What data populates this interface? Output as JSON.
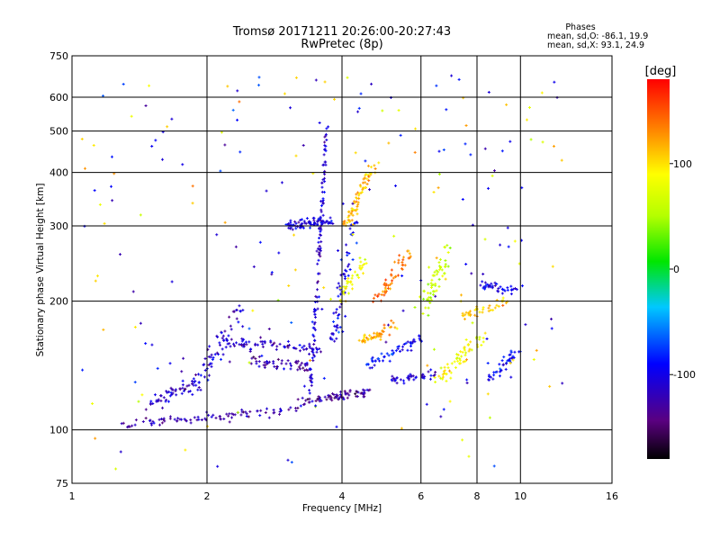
{
  "chart_data": {
    "type": "scatter",
    "title": "Tromsø 20171211 20:26:00-20:27:43",
    "subtitle": "RwPretec (8p)",
    "xlabel": "Frequency [MHz]",
    "ylabel": "Stationary phase Virtual Height [km]",
    "x_scale": "log",
    "y_scale": "log",
    "xlim": [
      1,
      16
    ],
    "ylim": [
      75,
      750
    ],
    "x_ticks": [
      1,
      2,
      4,
      6,
      8,
      10,
      16
    ],
    "x_tick_labels": [
      "1",
      "2",
      "4",
      "6",
      "8",
      "10",
      "16"
    ],
    "y_ticks": [
      75,
      100,
      200,
      300,
      400,
      500,
      600,
      750
    ],
    "y_tick_labels": [
      "75",
      "100",
      "200",
      "300",
      "400",
      "500",
      "600",
      "750"
    ],
    "grid": true,
    "stats": {
      "heading": "Phases",
      "line_o": "mean, sd,O: -86.1, 19.9",
      "line_x": "mean, sd,X:  93.1, 24.9"
    },
    "colorbar": {
      "label": "[deg]",
      "min": -180,
      "max": 180,
      "ticks": [
        100,
        0,
        -100
      ],
      "tick_labels": [
        "100",
        "0",
        "-100"
      ],
      "colormap": "rainbow"
    },
    "traces": [
      {
        "x0": 1.3,
        "y0": 103,
        "x1": 3.2,
        "y1": 112,
        "phase": -120,
        "n": 90,
        "spread": 0.05
      },
      {
        "x0": 1.5,
        "y0": 115,
        "x1": 1.9,
        "y1": 130,
        "phase": -115,
        "n": 50,
        "spread": 0.08
      },
      {
        "x0": 1.9,
        "y0": 125,
        "x1": 2.4,
        "y1": 200,
        "phase": -110,
        "n": 60,
        "spread": 0.1
      },
      {
        "x0": 2.2,
        "y0": 160,
        "x1": 3.5,
        "y1": 155,
        "phase": -115,
        "n": 70,
        "spread": 0.08
      },
      {
        "x0": 2.5,
        "y0": 145,
        "x1": 3.4,
        "y1": 140,
        "phase": -125,
        "n": 50,
        "spread": 0.07
      },
      {
        "x0": 3.2,
        "y0": 116,
        "x1": 4.6,
        "y1": 123,
        "phase": -130,
        "n": 70,
        "spread": 0.05
      },
      {
        "x0": 3.4,
        "y0": 120,
        "x1": 3.7,
        "y1": 520,
        "phase": -110,
        "n": 120,
        "spread": 0.02
      },
      {
        "x0": 3.0,
        "y0": 300,
        "x1": 3.8,
        "y1": 310,
        "phase": -105,
        "n": 80,
        "spread": 0.06
      },
      {
        "x0": 3.8,
        "y0": 160,
        "x1": 4.3,
        "y1": 310,
        "phase": -100,
        "n": 60,
        "spread": 0.07
      },
      {
        "x0": 4.1,
        "y0": 300,
        "x1": 4.7,
        "y1": 420,
        "phase": 110,
        "n": 70,
        "spread": 0.05
      },
      {
        "x0": 3.9,
        "y0": 200,
        "x1": 4.5,
        "y1": 250,
        "phase": 80,
        "n": 40,
        "spread": 0.08
      },
      {
        "x0": 4.4,
        "y0": 160,
        "x1": 5.2,
        "y1": 175,
        "phase": 120,
        "n": 50,
        "spread": 0.06
      },
      {
        "x0": 4.8,
        "y0": 200,
        "x1": 5.6,
        "y1": 260,
        "phase": 140,
        "n": 50,
        "spread": 0.07
      },
      {
        "x0": 4.5,
        "y0": 140,
        "x1": 6.0,
        "y1": 165,
        "phase": -90,
        "n": 50,
        "spread": 0.06
      },
      {
        "x0": 5.0,
        "y0": 130,
        "x1": 6.5,
        "y1": 135,
        "phase": -110,
        "n": 40,
        "spread": 0.05
      },
      {
        "x0": 6.0,
        "y0": 190,
        "x1": 7.0,
        "y1": 270,
        "phase": 60,
        "n": 60,
        "spread": 0.09
      },
      {
        "x0": 6.5,
        "y0": 130,
        "x1": 8.2,
        "y1": 165,
        "phase": 90,
        "n": 60,
        "spread": 0.08
      },
      {
        "x0": 7.5,
        "y0": 185,
        "x1": 9.2,
        "y1": 200,
        "phase": 110,
        "n": 40,
        "spread": 0.06
      },
      {
        "x0": 8.0,
        "y0": 220,
        "x1": 9.8,
        "y1": 210,
        "phase": -100,
        "n": 40,
        "spread": 0.05
      },
      {
        "x0": 8.5,
        "y0": 130,
        "x1": 9.9,
        "y1": 155,
        "phase": -95,
        "n": 40,
        "spread": 0.06
      }
    ],
    "scatter_noise": {
      "n": 220,
      "x_range": [
        1.05,
        12.5
      ],
      "y_range": [
        80,
        680
      ]
    }
  }
}
